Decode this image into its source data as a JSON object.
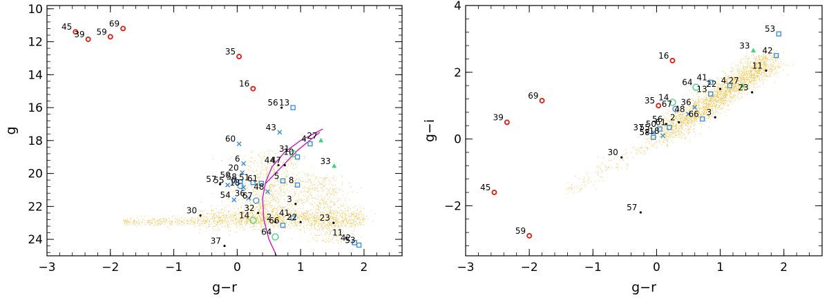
{
  "chart_data": [
    {
      "type": "scatter",
      "xlabel": "g−r",
      "ylabel": "g",
      "xlim": [
        -3,
        2.6
      ],
      "ylim": [
        25,
        9.8
      ],
      "y_inverted": true,
      "xticks": [
        -3,
        -2,
        -1,
        0,
        1,
        2
      ],
      "yticks": [
        10,
        12,
        14,
        16,
        18,
        20,
        22,
        24
      ],
      "xtick_labels": [
        "−3",
        "−2",
        "−1",
        "0",
        "1",
        "2"
      ],
      "ytick_labels": [
        "10",
        "12",
        "14",
        "16",
        "18",
        "20",
        "22",
        "24"
      ],
      "grid": false,
      "legend": "none",
      "background_field": {
        "color": "#f5c242",
        "description": "dense field-star cloud",
        "regions": [
          {
            "x_range": [
              -0.6,
              2.0
            ],
            "y_range": [
              22.0,
              23.3
            ],
            "weight": 0.45
          },
          {
            "x_range": [
              0.0,
              1.2
            ],
            "y_range": [
              18.5,
              23.0
            ],
            "weight": 0.35
          },
          {
            "x_range": [
              1.0,
              2.0
            ],
            "y_range": [
              20.0,
              24.2
            ],
            "weight": 0.2
          }
        ]
      },
      "curves": [
        {
          "color": "#c41bbd",
          "points": [
            [
              0.62,
              25.0
            ],
            [
              0.5,
              24.0
            ],
            [
              0.42,
              22.8
            ],
            [
              0.4,
              21.5
            ],
            [
              0.45,
              20.5
            ],
            [
              0.55,
              19.6
            ],
            [
              0.75,
              18.7
            ],
            [
              1.0,
              18.0
            ],
            [
              1.35,
              17.3
            ]
          ]
        },
        {
          "color": "#c41bbd",
          "points": [
            [
              0.45,
              20.6
            ],
            [
              0.7,
              19.6
            ],
            [
              0.95,
              18.6
            ],
            [
              1.3,
              17.5
            ]
          ]
        }
      ],
      "points": [
        {
          "label": "45",
          "x": -2.55,
          "y": 11.4,
          "marker": "circle-red"
        },
        {
          "label": "39",
          "x": -2.35,
          "y": 11.85,
          "marker": "circle-red"
        },
        {
          "label": "59",
          "x": -2.0,
          "y": 11.7,
          "marker": "circle-red"
        },
        {
          "label": "69",
          "x": -1.8,
          "y": 11.2,
          "marker": "circle-red"
        },
        {
          "label": "35",
          "x": 0.03,
          "y": 12.9,
          "marker": "circle-red"
        },
        {
          "label": "16",
          "x": 0.25,
          "y": 14.85,
          "marker": "circle-red"
        },
        {
          "label": "56",
          "x": 0.7,
          "y": 16.0,
          "marker": "dot"
        },
        {
          "label": "13",
          "x": 0.88,
          "y": 16.0,
          "marker": "square-blue"
        },
        {
          "label": "43",
          "x": 0.67,
          "y": 17.5,
          "marker": "cross-blue"
        },
        {
          "label": "27",
          "x": 1.32,
          "y": 18.0,
          "marker": "triangle-green"
        },
        {
          "label": "4",
          "x": 1.15,
          "y": 18.2,
          "marker": "square-blue"
        },
        {
          "label": "60",
          "x": 0.03,
          "y": 18.2,
          "marker": "cross-blue"
        },
        {
          "label": "31",
          "x": 0.88,
          "y": 18.8,
          "marker": "circle-green"
        },
        {
          "label": "10",
          "x": 0.95,
          "y": 19.0,
          "marker": "square-blue"
        },
        {
          "label": "6",
          "x": 0.1,
          "y": 19.4,
          "marker": "cross-blue"
        },
        {
          "label": "44",
          "x": 0.65,
          "y": 19.5,
          "marker": "dot"
        },
        {
          "label": "47",
          "x": 0.75,
          "y": 19.5,
          "marker": "dot"
        },
        {
          "label": "33",
          "x": 1.53,
          "y": 19.55,
          "marker": "triangle-green"
        },
        {
          "label": "20",
          "x": 0.08,
          "y": 19.95,
          "marker": "cross-blue"
        },
        {
          "label": "50",
          "x": -0.05,
          "y": 20.4,
          "marker": "square-blue"
        },
        {
          "label": "58",
          "x": 0.05,
          "y": 20.5,
          "marker": "square-blue"
        },
        {
          "label": "51",
          "x": 0.25,
          "y": 20.55,
          "marker": "square-blue"
        },
        {
          "label": "61",
          "x": 0.38,
          "y": 20.6,
          "marker": "square-blue"
        },
        {
          "label": "5",
          "x": 0.72,
          "y": 20.45,
          "marker": "square-blue"
        },
        {
          "label": "8",
          "x": 0.95,
          "y": 20.7,
          "marker": "square-blue"
        },
        {
          "label": "57",
          "x": -0.27,
          "y": 20.65,
          "marker": "dot"
        },
        {
          "label": "55",
          "x": -0.15,
          "y": 20.7,
          "marker": "cross-blue"
        },
        {
          "label": "7",
          "x": 0.05,
          "y": 20.75,
          "marker": "circle-blue"
        },
        {
          "label": "18",
          "x": 0.1,
          "y": 20.85,
          "marker": "cross-blue"
        },
        {
          "label": "48",
          "x": 0.48,
          "y": 21.1,
          "marker": "cross-blue"
        },
        {
          "label": "36",
          "x": 0.18,
          "y": 21.5,
          "marker": "cross-blue"
        },
        {
          "label": "54",
          "x": -0.05,
          "y": 21.6,
          "marker": "cross-blue"
        },
        {
          "label": "67",
          "x": 0.3,
          "y": 21.65,
          "marker": "circle-blue"
        },
        {
          "label": "3",
          "x": 0.92,
          "y": 21.85,
          "marker": "dot"
        },
        {
          "label": "30",
          "x": -0.58,
          "y": 22.55,
          "marker": "dot"
        },
        {
          "label": "32",
          "x": 0.33,
          "y": 22.4,
          "marker": "dot"
        },
        {
          "label": "14",
          "x": 0.25,
          "y": 22.85,
          "marker": "circle-green"
        },
        {
          "label": "41",
          "x": 0.88,
          "y": 22.7,
          "marker": "square-blue"
        },
        {
          "label": "2",
          "x": 0.6,
          "y": 22.95,
          "marker": "dot"
        },
        {
          "label": "22",
          "x": 1.0,
          "y": 22.95,
          "marker": "dot"
        },
        {
          "label": "23",
          "x": 1.52,
          "y": 23.0,
          "marker": "dot"
        },
        {
          "label": "66",
          "x": 0.72,
          "y": 23.15,
          "marker": "square-blue"
        },
        {
          "label": "64",
          "x": 0.6,
          "y": 23.85,
          "marker": "circle-green"
        },
        {
          "label": "37",
          "x": -0.2,
          "y": 24.4,
          "marker": "dot"
        },
        {
          "label": "11",
          "x": 1.72,
          "y": 23.9,
          "marker": "dot"
        },
        {
          "label": "42",
          "x": 1.85,
          "y": 24.2,
          "marker": "square-blue"
        },
        {
          "label": "53",
          "x": 1.92,
          "y": 24.35,
          "marker": "square-blue"
        }
      ]
    },
    {
      "type": "scatter",
      "xlabel": "g−r",
      "ylabel": "g−i",
      "xlim": [
        -3,
        2.6
      ],
      "ylim": [
        -3.5,
        4
      ],
      "y_inverted": false,
      "xticks": [
        -3,
        -2,
        -1,
        0,
        1,
        2
      ],
      "yticks": [
        -2,
        0,
        2,
        4
      ],
      "xtick_labels": [
        "−3",
        "−2",
        "−1",
        "0",
        "1",
        "2"
      ],
      "ytick_labels": [
        "−2",
        "0",
        "2",
        "4"
      ],
      "grid": false,
      "legend": "none",
      "background_field": {
        "color": "#f5c242",
        "description": "diagonal field-star band",
        "regions": [
          {
            "x_start": 0.0,
            "y_start": 0.0,
            "x_end": 1.8,
            "y_end": 2.4,
            "spread": 0.35
          }
        ]
      },
      "points": [
        {
          "label": "53",
          "x": 1.92,
          "y": 3.15,
          "marker": "square-blue"
        },
        {
          "label": "33",
          "x": 1.52,
          "y": 2.65,
          "marker": "triangle-green"
        },
        {
          "label": "42",
          "x": 1.88,
          "y": 2.5,
          "marker": "square-blue"
        },
        {
          "label": "16",
          "x": 0.25,
          "y": 2.35,
          "marker": "circle-red"
        },
        {
          "label": "11",
          "x": 1.72,
          "y": 2.05,
          "marker": "dot"
        },
        {
          "label": "41",
          "x": 0.85,
          "y": 1.7,
          "marker": "square-blue"
        },
        {
          "label": "27",
          "x": 1.35,
          "y": 1.6,
          "marker": "triangle-green"
        },
        {
          "label": "4",
          "x": 1.15,
          "y": 1.6,
          "marker": "square-blue"
        },
        {
          "label": "64",
          "x": 0.62,
          "y": 1.55,
          "marker": "circle-green"
        },
        {
          "label": "22",
          "x": 1.0,
          "y": 1.5,
          "marker": "dot"
        },
        {
          "label": "23",
          "x": 1.5,
          "y": 1.4,
          "marker": "dot"
        },
        {
          "label": "13",
          "x": 0.85,
          "y": 1.35,
          "marker": "square-blue"
        },
        {
          "label": "69",
          "x": -1.8,
          "y": 1.15,
          "marker": "circle-red"
        },
        {
          "label": "14",
          "x": 0.25,
          "y": 1.1,
          "marker": "circle-green"
        },
        {
          "label": "35",
          "x": 0.03,
          "y": 1.0,
          "marker": "circle-red"
        },
        {
          "label": "67",
          "x": 0.3,
          "y": 0.9,
          "marker": "circle-blue"
        },
        {
          "label": "36",
          "x": 0.6,
          "y": 0.95,
          "marker": "cross-blue"
        },
        {
          "label": "48",
          "x": 0.5,
          "y": 0.75,
          "marker": "cross-blue"
        },
        {
          "label": "66",
          "x": 0.72,
          "y": 0.6,
          "marker": "square-blue"
        },
        {
          "label": "3",
          "x": 0.92,
          "y": 0.65,
          "marker": "dot"
        },
        {
          "label": "39",
          "x": -2.35,
          "y": 0.5,
          "marker": "circle-red"
        },
        {
          "label": "56",
          "x": 0.15,
          "y": 0.45,
          "marker": "dot"
        },
        {
          "label": "2",
          "x": 0.35,
          "y": 0.5,
          "marker": "dot"
        },
        {
          "label": "61",
          "x": 0.2,
          "y": 0.35,
          "marker": "square-blue"
        },
        {
          "label": "50",
          "x": 0.05,
          "y": 0.3,
          "marker": "square-blue"
        },
        {
          "label": "37",
          "x": -0.15,
          "y": 0.2,
          "marker": "dot"
        },
        {
          "label": "55",
          "x": -0.05,
          "y": 0.2,
          "marker": "cross-blue"
        },
        {
          "label": "58",
          "x": -0.05,
          "y": 0.05,
          "marker": "square-blue"
        },
        {
          "label": "18",
          "x": 0.1,
          "y": 0.1,
          "marker": "cross-blue"
        },
        {
          "label": "30",
          "x": -0.55,
          "y": -0.55,
          "marker": "dot"
        },
        {
          "label": "45",
          "x": -2.55,
          "y": -1.6,
          "marker": "circle-red"
        },
        {
          "label": "57",
          "x": -0.25,
          "y": -2.2,
          "marker": "dot"
        },
        {
          "label": "59",
          "x": -2.0,
          "y": -2.9,
          "marker": "circle-red"
        }
      ]
    }
  ],
  "colors": {
    "field": "#f5c242",
    "red_marker": "#d42a1a",
    "blue_marker": "#3b8fde",
    "green_marker": "#3fd07a",
    "curve": "#c41bbd",
    "dot": "#000000"
  }
}
